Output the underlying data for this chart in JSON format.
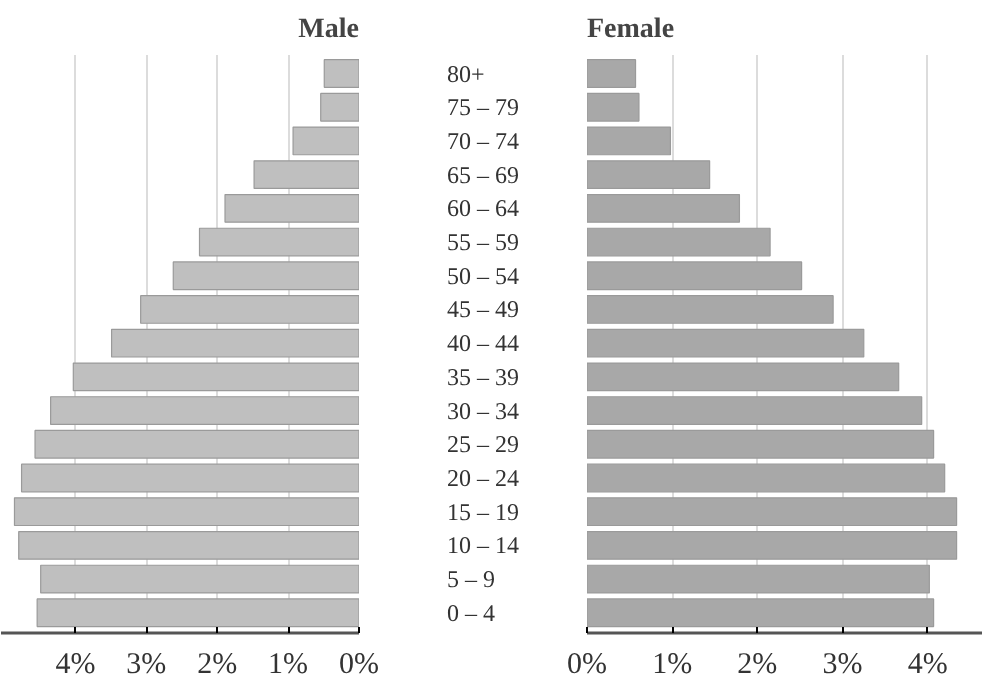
{
  "chart_data": [
    {
      "type": "bar",
      "orientation": "horizontal",
      "title": "Male",
      "categories": [
        "80+",
        "75 – 79",
        "70 – 74",
        "65 – 69",
        "60 – 64",
        "55 – 59",
        "50 – 54",
        "45 – 49",
        "40 – 44",
        "35 – 39",
        "30 – 34",
        "25 – 29",
        "20 – 24",
        "15 – 19",
        "10 – 14",
        "5 – 9",
        "0 – 4"
      ],
      "values": [
        0.49,
        0.54,
        0.93,
        1.48,
        1.89,
        2.25,
        2.62,
        3.08,
        3.49,
        4.03,
        4.35,
        4.57,
        4.76,
        4.86,
        4.8,
        4.49,
        4.54
      ],
      "color": "#bfbfbf",
      "xlim": [
        5.05,
        0
      ],
      "xticks": [
        {
          "value": 4,
          "label": "4%"
        },
        {
          "value": 3,
          "label": "3%"
        },
        {
          "value": 2,
          "label": "2%"
        },
        {
          "value": 1,
          "label": "1%"
        },
        {
          "value": 0,
          "label": "0%"
        }
      ],
      "grid": "x"
    },
    {
      "type": "bar",
      "orientation": "horizontal",
      "title": "Female",
      "categories": [
        null,
        null,
        null,
        null,
        null,
        null,
        null,
        null,
        null,
        null,
        null,
        null,
        null,
        null,
        null,
        null,
        null
      ],
      "values": [
        0.57,
        0.61,
        0.98,
        1.44,
        1.79,
        2.15,
        2.52,
        2.89,
        3.25,
        3.66,
        3.93,
        4.07,
        4.2,
        4.34,
        4.34,
        4.02,
        4.07
      ],
      "color": "#a8a8a8",
      "xlim": [
        0,
        4.65
      ],
      "xticks": [
        {
          "value": 0,
          "label": "0%"
        },
        {
          "value": 1,
          "label": "1%"
        },
        {
          "value": 2,
          "label": "2%"
        },
        {
          "value": 3,
          "label": "3%"
        },
        {
          "value": 4,
          "label": "4%"
        }
      ],
      "grid": "x"
    }
  ]
}
